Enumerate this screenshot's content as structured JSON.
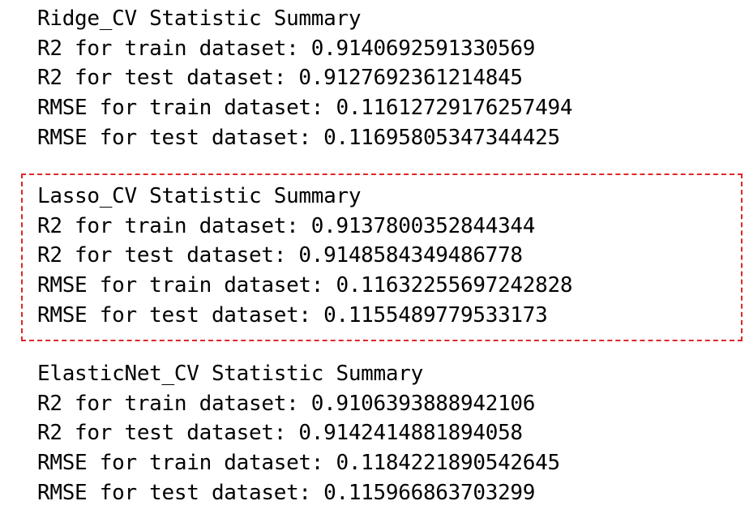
{
  "colors": {
    "text": "#000000",
    "background": "#ffffff",
    "highlight_border": "#e0252a"
  },
  "summaries": [
    {
      "title": "Ridge_CV Statistic Summary",
      "lines": [
        "R2 for train dataset: 0.9140692591330569",
        "R2 for test dataset: 0.9127692361214845",
        "RMSE for train dataset: 0.11612729176257494",
        "RMSE for test dataset: 0.11695805347344425"
      ]
    },
    {
      "title": "Lasso_CV Statistic Summary",
      "lines": [
        "R2 for train dataset: 0.9137800352844344",
        "R2 for test dataset: 0.9148584349486778",
        "RMSE for train dataset: 0.11632255697242828",
        "RMSE for test dataset: 0.1155489779533173"
      ]
    },
    {
      "title": "ElasticNet_CV Statistic Summary",
      "lines": [
        "R2 for train dataset: 0.9106393888942106",
        "R2 for test dataset: 0.9142414881894058",
        "RMSE for train dataset: 0.1184221890542645",
        "RMSE for test dataset: 0.115966863703299"
      ]
    }
  ]
}
